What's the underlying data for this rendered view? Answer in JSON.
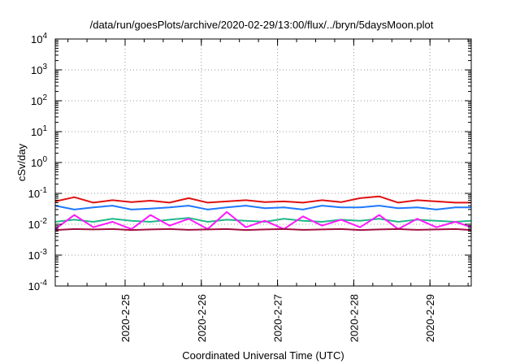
{
  "chart_data": {
    "type": "line",
    "title": "/data/run/goesPlots/archive/2020-02-29/13:00/flux/../bryn/5daysMoon.plot",
    "xlabel": "Coordinated Universal Time (UTC)",
    "ylabel": "cSv/day",
    "yscale": "log",
    "ylim": [
      0.0001,
      10000
    ],
    "xlim": [
      "2020-02-24 02:00",
      "2020-02-29 13:00"
    ],
    "grid": true,
    "legend": "none",
    "x_ticks": [
      {
        "date": "2020-02-25",
        "label": "2020-2-25"
      },
      {
        "date": "2020-02-26",
        "label": "2020-2-26"
      },
      {
        "date": "2020-02-27",
        "label": "2020-2-27"
      },
      {
        "date": "2020-02-28",
        "label": "2020-2-28"
      },
      {
        "date": "2020-02-29",
        "label": "2020-2-29"
      }
    ],
    "y_ticks": [
      {
        "value": 0.0001,
        "base": "10",
        "exp": "-4"
      },
      {
        "value": 0.001,
        "base": "10",
        "exp": "-3"
      },
      {
        "value": 0.01,
        "base": "10",
        "exp": "-2"
      },
      {
        "value": 0.1,
        "base": "10",
        "exp": "-1"
      },
      {
        "value": 1,
        "base": "10",
        "exp": "0"
      },
      {
        "value": 10,
        "base": "10",
        "exp": "1"
      },
      {
        "value": 100,
        "base": "10",
        "exp": "2"
      },
      {
        "value": 1000,
        "base": "10",
        "exp": "3"
      },
      {
        "value": 10000,
        "base": "10",
        "exp": "4"
      }
    ],
    "series": [
      {
        "color": "#e01010",
        "x": [
          "2020-02-24 02:00",
          "2020-02-24 08:00",
          "2020-02-24 14:00",
          "2020-02-24 20:00",
          "2020-02-25 02:00",
          "2020-02-25 08:00",
          "2020-02-25 14:00",
          "2020-02-25 20:00",
          "2020-02-26 02:00",
          "2020-02-26 08:00",
          "2020-02-26 14:00",
          "2020-02-26 20:00",
          "2020-02-27 02:00",
          "2020-02-27 08:00",
          "2020-02-27 14:00",
          "2020-02-27 20:00",
          "2020-02-28 02:00",
          "2020-02-28 08:00",
          "2020-02-28 14:00",
          "2020-02-28 20:00",
          "2020-02-29 02:00",
          "2020-02-29 08:00",
          "2020-02-29 13:00"
        ],
        "values": [
          0.055,
          0.075,
          0.05,
          0.06,
          0.052,
          0.058,
          0.05,
          0.07,
          0.05,
          0.055,
          0.06,
          0.052,
          0.055,
          0.05,
          0.06,
          0.052,
          0.07,
          0.08,
          0.05,
          0.06,
          0.055,
          0.05,
          0.05
        ]
      },
      {
        "color": "#1e78ff",
        "x": [
          "2020-02-24 02:00",
          "2020-02-24 08:00",
          "2020-02-24 14:00",
          "2020-02-24 20:00",
          "2020-02-25 02:00",
          "2020-02-25 08:00",
          "2020-02-25 14:00",
          "2020-02-25 20:00",
          "2020-02-26 02:00",
          "2020-02-26 08:00",
          "2020-02-26 14:00",
          "2020-02-26 20:00",
          "2020-02-27 02:00",
          "2020-02-27 08:00",
          "2020-02-27 14:00",
          "2020-02-27 20:00",
          "2020-02-28 02:00",
          "2020-02-28 08:00",
          "2020-02-28 14:00",
          "2020-02-28 20:00",
          "2020-02-29 02:00",
          "2020-02-29 08:00",
          "2020-02-29 13:00"
        ],
        "values": [
          0.04,
          0.03,
          0.035,
          0.04,
          0.03,
          0.032,
          0.035,
          0.04,
          0.03,
          0.035,
          0.04,
          0.033,
          0.035,
          0.03,
          0.04,
          0.035,
          0.035,
          0.04,
          0.033,
          0.035,
          0.03,
          0.035,
          0.035
        ]
      },
      {
        "color": "#20b888",
        "x": [
          "2020-02-24 02:00",
          "2020-02-24 08:00",
          "2020-02-24 14:00",
          "2020-02-24 20:00",
          "2020-02-25 02:00",
          "2020-02-25 08:00",
          "2020-02-25 14:00",
          "2020-02-25 20:00",
          "2020-02-26 02:00",
          "2020-02-26 08:00",
          "2020-02-26 14:00",
          "2020-02-26 20:00",
          "2020-02-27 02:00",
          "2020-02-27 08:00",
          "2020-02-27 14:00",
          "2020-02-27 20:00",
          "2020-02-28 02:00",
          "2020-02-28 08:00",
          "2020-02-28 14:00",
          "2020-02-28 20:00",
          "2020-02-29 02:00",
          "2020-02-29 08:00",
          "2020-02-29 13:00"
        ],
        "values": [
          0.012,
          0.014,
          0.012,
          0.015,
          0.013,
          0.012,
          0.014,
          0.016,
          0.012,
          0.014,
          0.013,
          0.012,
          0.015,
          0.013,
          0.012,
          0.014,
          0.013,
          0.015,
          0.012,
          0.014,
          0.013,
          0.012,
          0.013
        ]
      },
      {
        "color": "#ff18ff",
        "x": [
          "2020-02-24 02:00",
          "2020-02-24 08:00",
          "2020-02-24 14:00",
          "2020-02-24 20:00",
          "2020-02-25 02:00",
          "2020-02-25 08:00",
          "2020-02-25 14:00",
          "2020-02-25 20:00",
          "2020-02-26 02:00",
          "2020-02-26 08:00",
          "2020-02-26 14:00",
          "2020-02-26 20:00",
          "2020-02-27 02:00",
          "2020-02-27 08:00",
          "2020-02-27 14:00",
          "2020-02-27 20:00",
          "2020-02-28 02:00",
          "2020-02-28 08:00",
          "2020-02-28 14:00",
          "2020-02-28 20:00",
          "2020-02-29 02:00",
          "2020-02-29 08:00",
          "2020-02-29 13:00"
        ],
        "values": [
          0.007,
          0.02,
          0.008,
          0.012,
          0.007,
          0.02,
          0.009,
          0.015,
          0.007,
          0.025,
          0.008,
          0.013,
          0.007,
          0.018,
          0.009,
          0.014,
          0.008,
          0.02,
          0.007,
          0.015,
          0.008,
          0.012,
          0.008
        ]
      },
      {
        "color": "#a01040",
        "x": [
          "2020-02-24 02:00",
          "2020-02-24 08:00",
          "2020-02-24 14:00",
          "2020-02-24 20:00",
          "2020-02-25 02:00",
          "2020-02-25 08:00",
          "2020-02-25 14:00",
          "2020-02-25 20:00",
          "2020-02-26 02:00",
          "2020-02-26 08:00",
          "2020-02-26 14:00",
          "2020-02-26 20:00",
          "2020-02-27 02:00",
          "2020-02-27 08:00",
          "2020-02-27 14:00",
          "2020-02-27 20:00",
          "2020-02-28 02:00",
          "2020-02-28 08:00",
          "2020-02-28 14:00",
          "2020-02-28 20:00",
          "2020-02-29 02:00",
          "2020-02-29 08:00",
          "2020-02-29 13:00"
        ],
        "values": [
          0.0065,
          0.007,
          0.0068,
          0.007,
          0.0065,
          0.0068,
          0.007,
          0.0066,
          0.0068,
          0.007,
          0.0065,
          0.0068,
          0.007,
          0.0066,
          0.0068,
          0.007,
          0.0065,
          0.0068,
          0.007,
          0.0066,
          0.0068,
          0.007,
          0.0065
        ]
      }
    ]
  }
}
